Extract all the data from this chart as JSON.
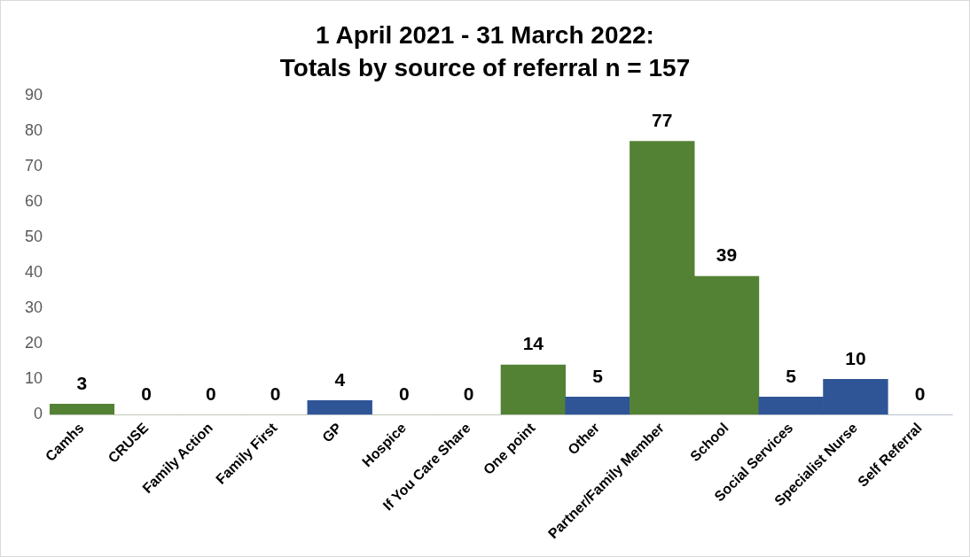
{
  "chart_data": {
    "type": "bar",
    "title": "1 April 2021 - 31 March 2022:\nTotals by source of referral n = 157",
    "categories": [
      "Camhs",
      "CRUSE",
      "Family Action",
      "Family First",
      "GP",
      "Hospice",
      "If You Care Share",
      "One point",
      "Other",
      "Partner/Family Member",
      "School",
      "Social Services",
      "Specialist Nurse",
      "Self Referral"
    ],
    "values": [
      3,
      0,
      0,
      0,
      4,
      0,
      0,
      14,
      5,
      77,
      39,
      5,
      10,
      0
    ],
    "colors": [
      "#548235",
      "#548235",
      "#548235",
      "#548235",
      "#2f5597",
      "#548235",
      "#548235",
      "#548235",
      "#2f5597",
      "#548235",
      "#548235",
      "#2f5597",
      "#2f5597",
      "#2f5597"
    ],
    "ylim": [
      0,
      90
    ],
    "yticks": [
      0,
      10,
      20,
      30,
      40,
      50,
      60,
      70,
      80,
      90
    ],
    "grid": false,
    "data_labels": true
  }
}
